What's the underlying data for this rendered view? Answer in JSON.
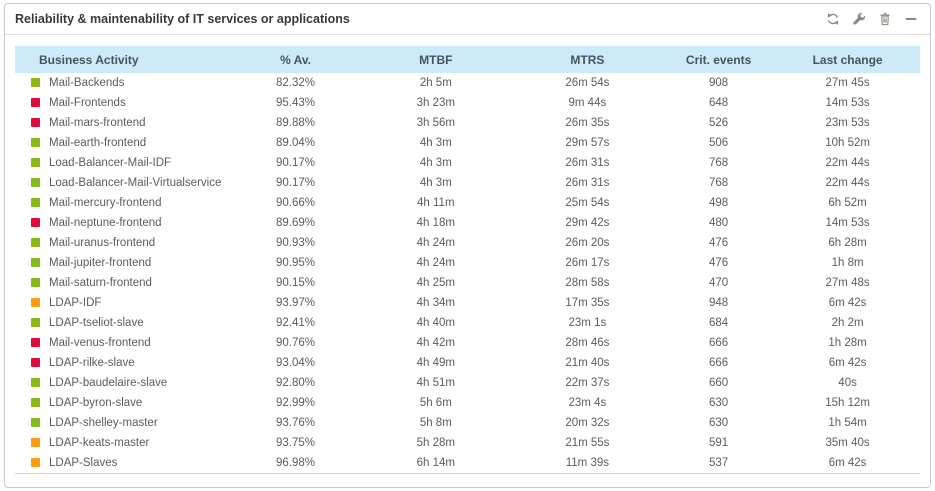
{
  "widget": {
    "title": "Reliability & maintenability of IT services or applications",
    "toolbar_icons": [
      "refresh",
      "configure",
      "delete",
      "collapse"
    ]
  },
  "table": {
    "columns": [
      "Business Activity",
      "% Av.",
      "MTBF",
      "MTRS",
      "Crit. events",
      "Last change"
    ],
    "rows": [
      {
        "activity": "Mail-Backends",
        "status": "green",
        "availability": "82.32%",
        "mtbf": "2h 5m",
        "mtrs": "26m 54s",
        "crit_events": "908",
        "last_change": "27m 45s"
      },
      {
        "activity": "Mail-Frontends",
        "status": "red",
        "availability": "95.43%",
        "mtbf": "3h 23m",
        "mtrs": "9m 44s",
        "crit_events": "648",
        "last_change": "14m 53s"
      },
      {
        "activity": "Mail-mars-frontend",
        "status": "red",
        "availability": "89.88%",
        "mtbf": "3h 56m",
        "mtrs": "26m 35s",
        "crit_events": "526",
        "last_change": "23m 53s"
      },
      {
        "activity": "Mail-earth-frontend",
        "status": "green",
        "availability": "89.04%",
        "mtbf": "4h 3m",
        "mtrs": "29m 57s",
        "crit_events": "506",
        "last_change": "10h 52m"
      },
      {
        "activity": "Load-Balancer-Mail-IDF",
        "status": "green",
        "availability": "90.17%",
        "mtbf": "4h 3m",
        "mtrs": "26m 31s",
        "crit_events": "768",
        "last_change": "22m 44s"
      },
      {
        "activity": "Load-Balancer-Mail-Virtualservice",
        "status": "green",
        "availability": "90.17%",
        "mtbf": "4h 3m",
        "mtrs": "26m 31s",
        "crit_events": "768",
        "last_change": "22m 44s"
      },
      {
        "activity": "Mail-mercury-frontend",
        "status": "green",
        "availability": "90.66%",
        "mtbf": "4h 11m",
        "mtrs": "25m 54s",
        "crit_events": "498",
        "last_change": "6h 52m"
      },
      {
        "activity": "Mail-neptune-frontend",
        "status": "red",
        "availability": "89.69%",
        "mtbf": "4h 18m",
        "mtrs": "29m 42s",
        "crit_events": "480",
        "last_change": "14m 53s"
      },
      {
        "activity": "Mail-uranus-frontend",
        "status": "green",
        "availability": "90.93%",
        "mtbf": "4h 24m",
        "mtrs": "26m 20s",
        "crit_events": "476",
        "last_change": "6h 28m"
      },
      {
        "activity": "Mail-jupiter-frontend",
        "status": "green",
        "availability": "90.95%",
        "mtbf": "4h 24m",
        "mtrs": "26m 17s",
        "crit_events": "476",
        "last_change": "1h 8m"
      },
      {
        "activity": "Mail-saturn-frontend",
        "status": "green",
        "availability": "90.15%",
        "mtbf": "4h 25m",
        "mtrs": "28m 58s",
        "crit_events": "470",
        "last_change": "27m 48s"
      },
      {
        "activity": "LDAP-IDF",
        "status": "orange",
        "availability": "93.97%",
        "mtbf": "4h 34m",
        "mtrs": "17m 35s",
        "crit_events": "948",
        "last_change": "6m 42s"
      },
      {
        "activity": "LDAP-tseliot-slave",
        "status": "green",
        "availability": "92.41%",
        "mtbf": "4h 40m",
        "mtrs": "23m 1s",
        "crit_events": "684",
        "last_change": "2h 2m"
      },
      {
        "activity": "Mail-venus-frontend",
        "status": "red",
        "availability": "90.76%",
        "mtbf": "4h 42m",
        "mtrs": "28m 46s",
        "crit_events": "666",
        "last_change": "1h 28m"
      },
      {
        "activity": "LDAP-rilke-slave",
        "status": "red",
        "availability": "93.04%",
        "mtbf": "4h 49m",
        "mtrs": "21m 40s",
        "crit_events": "666",
        "last_change": "6m 42s"
      },
      {
        "activity": "LDAP-baudelaire-slave",
        "status": "green",
        "availability": "92.80%",
        "mtbf": "4h 51m",
        "mtrs": "22m 37s",
        "crit_events": "660",
        "last_change": "40s"
      },
      {
        "activity": "LDAP-byron-slave",
        "status": "green",
        "availability": "92.99%",
        "mtbf": "5h 6m",
        "mtrs": "23m 4s",
        "crit_events": "630",
        "last_change": "15h 12m"
      },
      {
        "activity": "LDAP-shelley-master",
        "status": "green",
        "availability": "93.76%",
        "mtbf": "5h 8m",
        "mtrs": "20m 32s",
        "crit_events": "630",
        "last_change": "1h 54m"
      },
      {
        "activity": "LDAP-keats-master",
        "status": "orange",
        "availability": "93.75%",
        "mtbf": "5h 28m",
        "mtrs": "21m 55s",
        "crit_events": "591",
        "last_change": "35m 40s"
      },
      {
        "activity": "LDAP-Slaves",
        "status": "orange",
        "availability": "96.98%",
        "mtbf": "6h 14m",
        "mtrs": "11m 39s",
        "crit_events": "537",
        "last_change": "6m 42s"
      }
    ]
  },
  "colors": {
    "status_green": "#88b917",
    "status_red": "#e00b3d",
    "status_orange": "#ff9a13",
    "header_bg": "#cdeaf8",
    "header_text": "#46555e",
    "row_text": "#5b5b5b",
    "title_text": "#373a3c",
    "widget_border": "#c9c9c9",
    "title_divider": "#dcdcdc",
    "table_bottom": "#bedcef",
    "icon": "#8b897d"
  }
}
